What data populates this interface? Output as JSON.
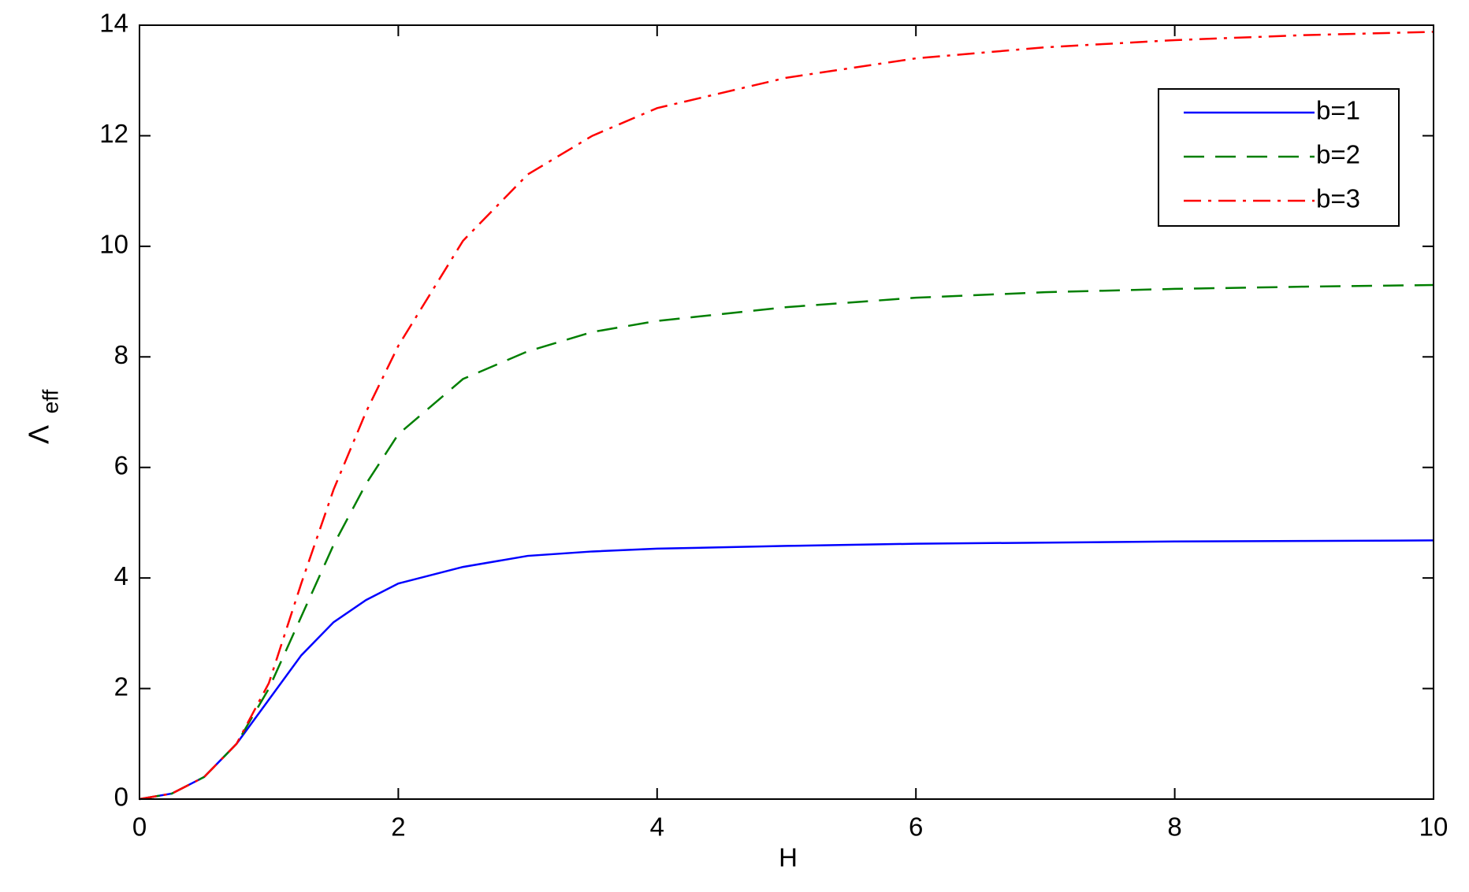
{
  "chart_data": {
    "type": "line",
    "xlabel": "H",
    "ylabel": "Λ",
    "ylabel_subscript": "eff",
    "x": [
      0,
      0.25,
      0.5,
      0.75,
      1,
      1.25,
      1.5,
      1.75,
      2,
      2.5,
      3,
      3.5,
      4,
      5,
      6,
      7,
      8,
      9,
      10
    ],
    "series": [
      {
        "name": "b=1",
        "color": "#0000ff",
        "linestyle": "solid",
        "values": [
          0,
          0.1,
          0.4,
          1.0,
          1.8,
          2.6,
          3.2,
          3.6,
          3.9,
          4.2,
          4.4,
          4.48,
          4.53,
          4.58,
          4.62,
          4.64,
          4.66,
          4.67,
          4.68
        ]
      },
      {
        "name": "b=2",
        "color": "#007f00",
        "linestyle": "dashed",
        "values": [
          0,
          0.1,
          0.4,
          1.0,
          2.0,
          3.3,
          4.6,
          5.7,
          6.6,
          7.6,
          8.1,
          8.45,
          8.65,
          8.9,
          9.07,
          9.17,
          9.23,
          9.27,
          9.3
        ]
      },
      {
        "name": "b=3",
        "color": "#ff0000",
        "linestyle": "dashdot",
        "values": [
          0,
          0.1,
          0.4,
          1.0,
          2.1,
          3.9,
          5.6,
          7.0,
          8.2,
          10.1,
          11.3,
          12.0,
          12.5,
          13.05,
          13.4,
          13.6,
          13.73,
          13.82,
          13.88
        ]
      }
    ],
    "xlim": [
      0,
      10
    ],
    "xticks": [
      0,
      2,
      4,
      6,
      8,
      10
    ],
    "ylim": [
      0,
      14
    ],
    "yticks": [
      0,
      2,
      4,
      6,
      8,
      10,
      12,
      14
    ],
    "grid": false,
    "legend": "upper right"
  }
}
